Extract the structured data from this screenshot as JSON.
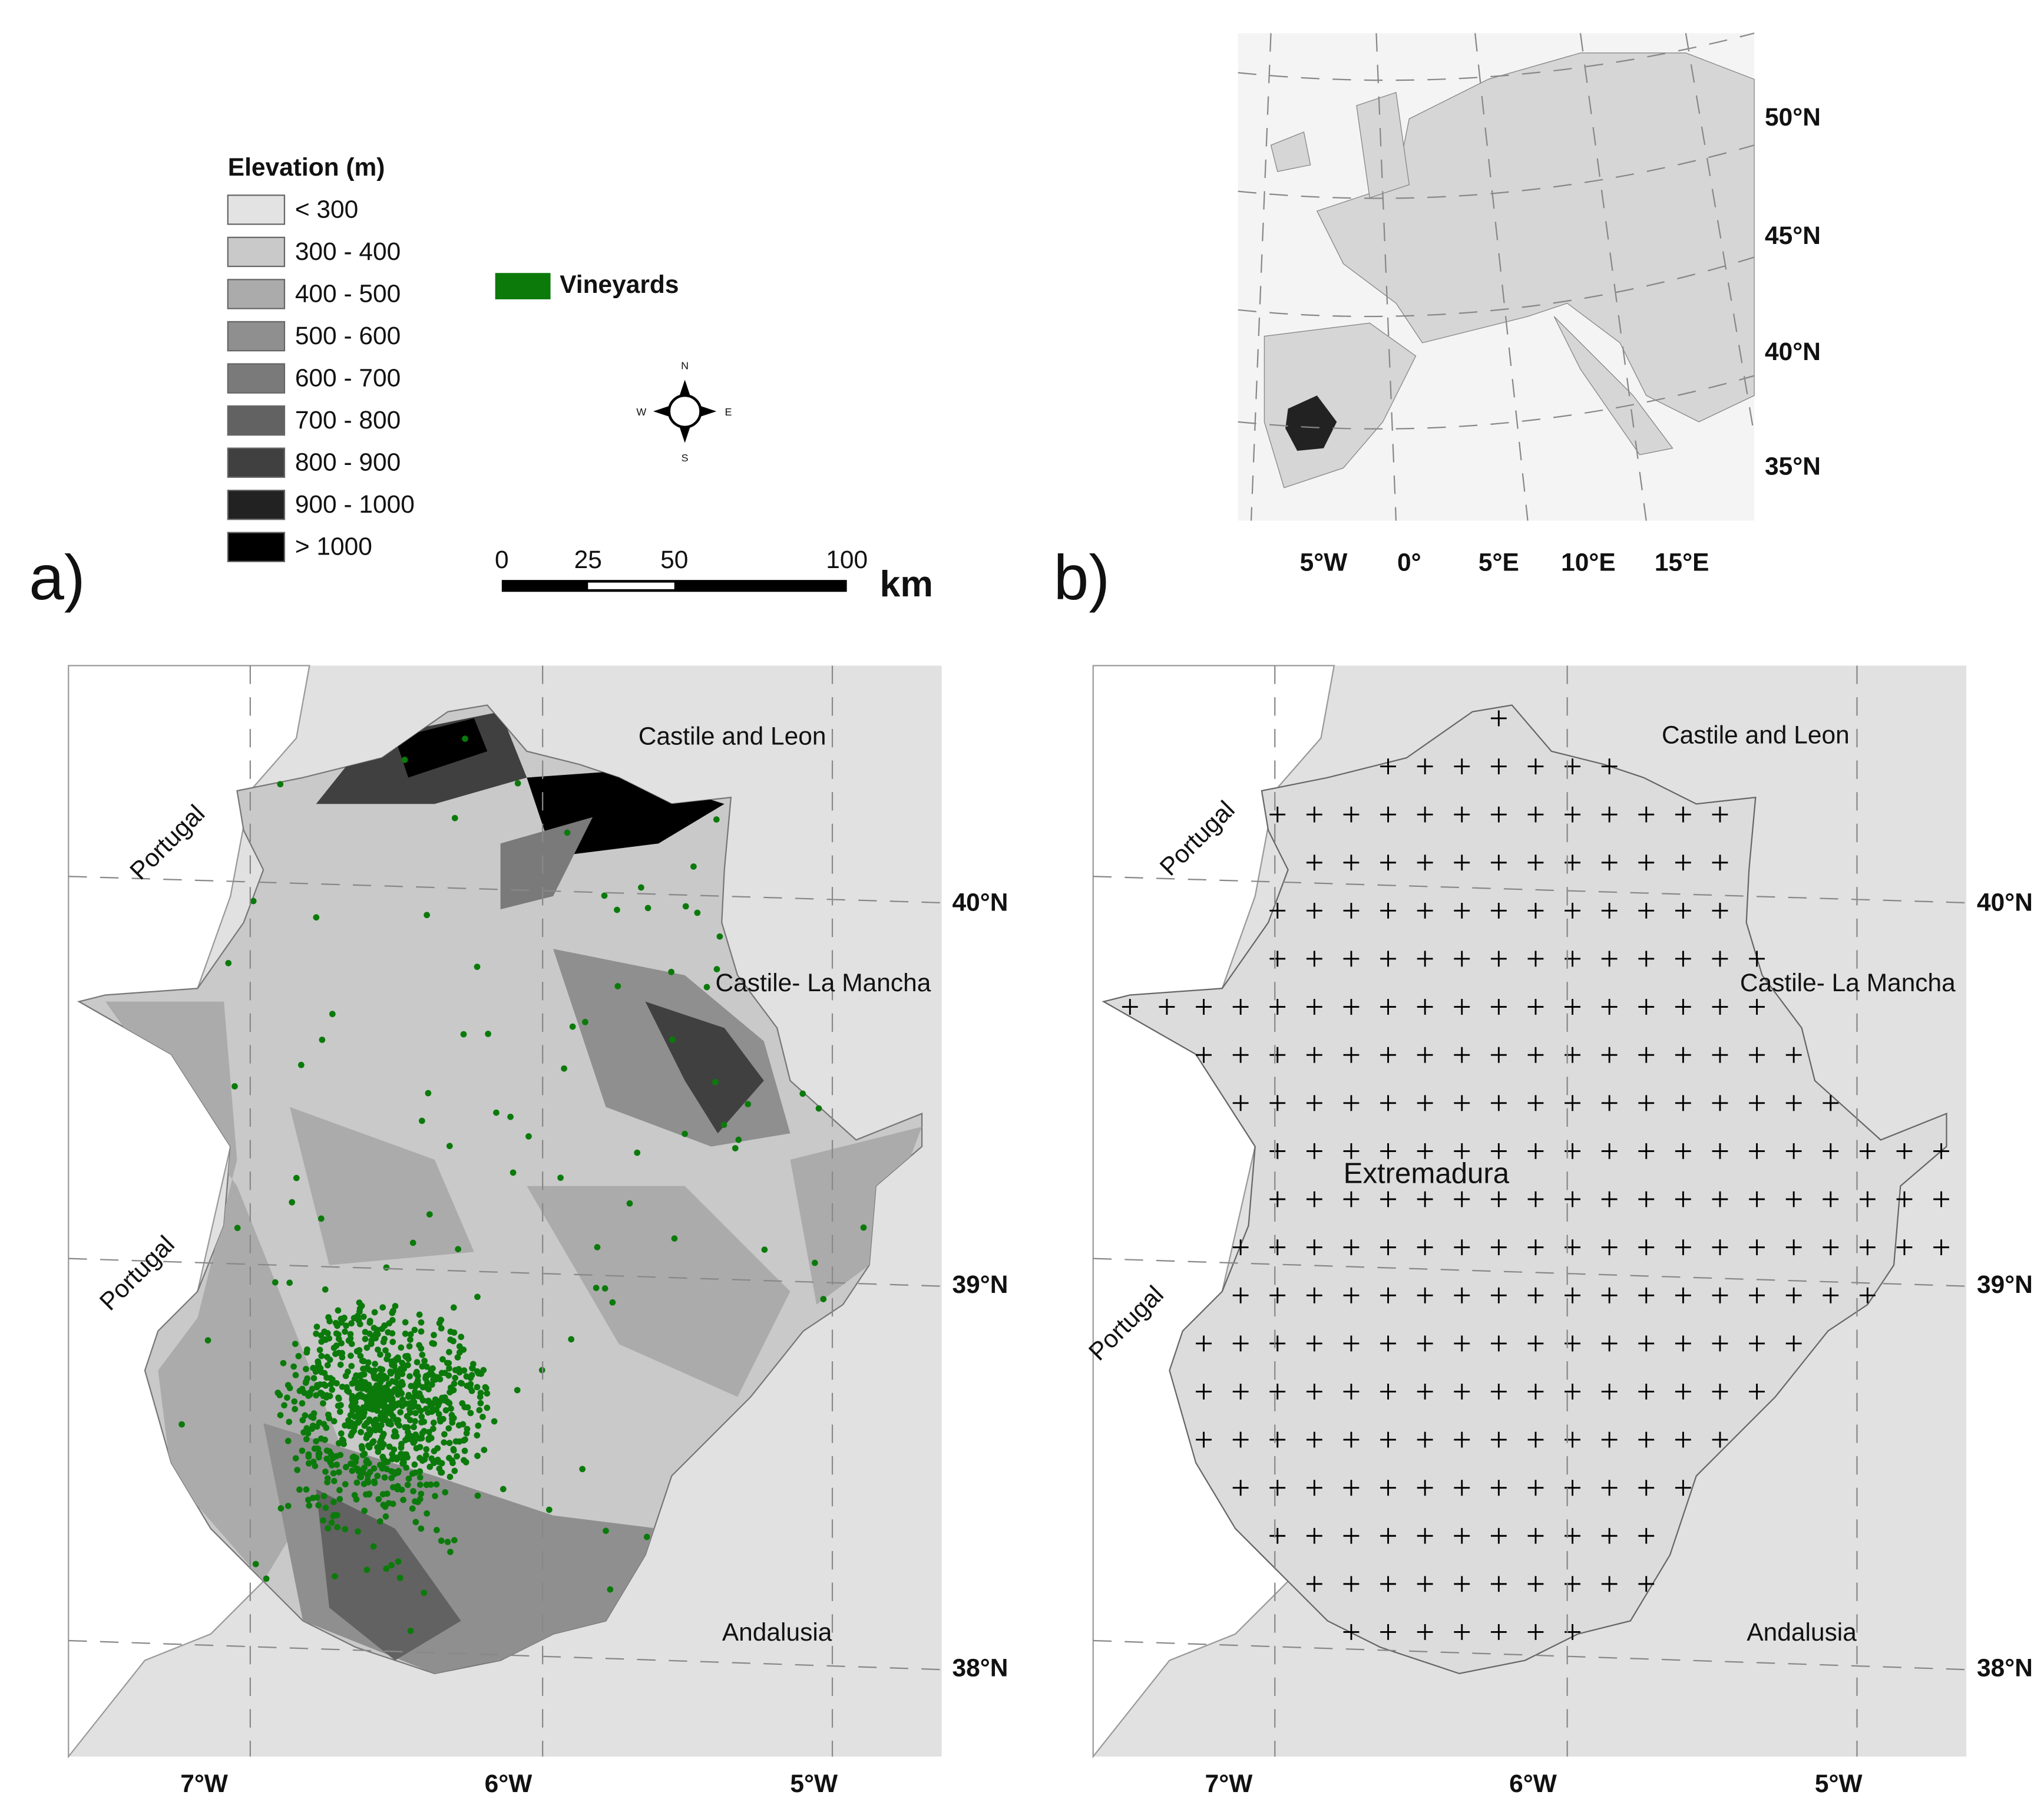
{
  "legend": {
    "title": "Elevation (m)",
    "items": [
      {
        "label": "< 300",
        "color": "#e3e3e3"
      },
      {
        "label": "300 - 400",
        "color": "#c9c9c9"
      },
      {
        "label": "400 - 500",
        "color": "#ababab"
      },
      {
        "label": "500 - 600",
        "color": "#8f8f8f"
      },
      {
        "label": "600 - 700",
        "color": "#7a7a7a"
      },
      {
        "label": "700 - 800",
        "color": "#626262"
      },
      {
        "label": "800 - 900",
        "color": "#404040"
      },
      {
        "label": "900 - 1000",
        "color": "#222222"
      },
      {
        "label": "> 1000",
        "color": "#000000"
      }
    ],
    "vineyards": {
      "label": "Vineyards",
      "color": "#0b7a0b"
    }
  },
  "compass": {
    "n": "N",
    "e": "E",
    "s": "S",
    "w": "W"
  },
  "scale_bar": {
    "ticks": [
      0,
      25,
      50,
      100
    ],
    "unit": "km"
  },
  "panel_a": {
    "label": "a)",
    "regions": [
      "Castile and Leon",
      "Castile- La Mancha",
      "Portugal",
      "Portugal",
      "Andalusia"
    ],
    "lat_labels": [
      "40°N",
      "39°N",
      "38°N"
    ],
    "lon_labels": [
      "7°W",
      "6°W",
      "5°W"
    ]
  },
  "panel_b": {
    "label": "b)",
    "regions": [
      "Castile and Leon",
      "Castile- La Mancha",
      "Portugal",
      "Portugal",
      "Andalusia",
      "Extremadura"
    ],
    "lat_labels": [
      "40°N",
      "39°N",
      "38°N"
    ],
    "lon_labels": [
      "7°W",
      "6°W",
      "5°W"
    ]
  },
  "inset": {
    "lat_labels": [
      "50°N",
      "45°N",
      "40°N",
      "35°N"
    ],
    "lon_labels": [
      "5°W",
      "0°",
      "5°E",
      "10°E",
      "15°E"
    ]
  }
}
